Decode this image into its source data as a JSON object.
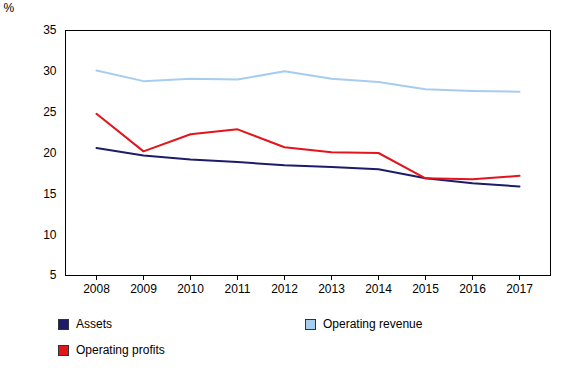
{
  "chart_data": {
    "type": "line",
    "y_label": "%",
    "categories": [
      "2008",
      "2009",
      "2010",
      "2011",
      "2012",
      "2013",
      "2014",
      "2015",
      "2016",
      "2017"
    ],
    "series": [
      {
        "name": "Assets",
        "color": "#1c1c6b",
        "values": [
          20.6,
          19.7,
          19.2,
          18.9,
          18.5,
          18.3,
          18.0,
          16.9,
          16.3,
          15.9
        ]
      },
      {
        "name": "Operating revenue",
        "color": "#a7cdee",
        "values": [
          30.1,
          28.8,
          29.1,
          29.0,
          30.0,
          29.1,
          28.7,
          27.8,
          27.6,
          27.5
        ]
      },
      {
        "name": "Operating profits",
        "color": "#e3141b",
        "values": [
          24.8,
          20.2,
          22.3,
          22.9,
          20.7,
          20.1,
          20.0,
          16.9,
          16.8,
          17.2
        ]
      }
    ],
    "ylim": [
      5,
      35
    ],
    "yticks": [
      5,
      10,
      15,
      20,
      25,
      30,
      35
    ],
    "grid": false
  }
}
